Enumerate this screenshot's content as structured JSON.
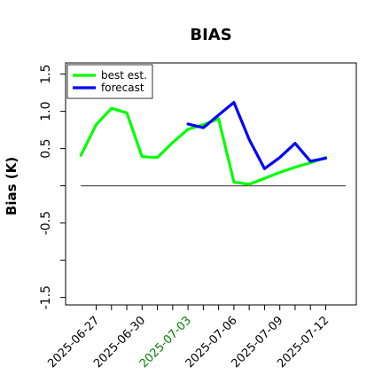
{
  "chart_data": {
    "type": "line",
    "title": "BIAS",
    "xlabel": "",
    "ylabel": "Bias (K)",
    "ylim": [
      -1.6,
      1.65
    ],
    "xlim": [
      "2025-06-25",
      "2025-07-14"
    ],
    "yticks": [
      -1.5,
      -1.0,
      -0.5,
      0.0,
      0.5,
      1.0,
      1.5
    ],
    "ytick_labels": [
      "-1.5",
      "",
      "-0.5",
      "",
      "0.5",
      "1.0",
      "1.5"
    ],
    "xticks": [
      "2025-06-27",
      "2025-06-28",
      "2025-06-29",
      "2025-06-30",
      "2025-07-01",
      "2025-07-02",
      "2025-07-03",
      "2025-07-04",
      "2025-07-05",
      "2025-07-06",
      "2025-07-07",
      "2025-07-08",
      "2025-07-09",
      "2025-07-10",
      "2025-07-11",
      "2025-07-12"
    ],
    "xtick_labels": [
      {
        "date": "2025-06-27",
        "text": "2025-06-27",
        "color": "#000000"
      },
      {
        "date": "2025-06-30",
        "text": "2025-06-30",
        "color": "#000000"
      },
      {
        "date": "2025-07-03",
        "text": "2025-07-03",
        "color": "#008000"
      },
      {
        "date": "2025-07-06",
        "text": "2025-07-06",
        "color": "#000000"
      },
      {
        "date": "2025-07-09",
        "text": "2025-07-09",
        "color": "#000000"
      },
      {
        "date": "2025-07-12",
        "text": "2025-07-12",
        "color": "#000000"
      }
    ],
    "zero_line": 0.0,
    "grid": false,
    "legend_position": "top-left",
    "series": [
      {
        "name": "best est.",
        "color": "#00ff00",
        "x": [
          "2025-06-26",
          "2025-06-27",
          "2025-06-28",
          "2025-06-29",
          "2025-06-30",
          "2025-07-01",
          "2025-07-02",
          "2025-07-03",
          "2025-07-04",
          "2025-07-05",
          "2025-07-06",
          "2025-07-07",
          "2025-07-08",
          "2025-07-09",
          "2025-07-10",
          "2025-07-11",
          "2025-07-12"
        ],
        "values": [
          0.41,
          0.82,
          1.04,
          0.98,
          0.39,
          0.38,
          0.58,
          0.76,
          0.82,
          0.9,
          0.05,
          0.02,
          0.1,
          0.18,
          0.25,
          0.31,
          0.38
        ]
      },
      {
        "name": "forecast",
        "color": "#0000ff",
        "x": [
          "2025-07-03",
          "2025-07-04",
          "2025-07-05",
          "2025-07-06",
          "2025-07-07",
          "2025-07-08",
          "2025-07-09",
          "2025-07-10",
          "2025-07-11",
          "2025-07-12"
        ],
        "values": [
          0.83,
          0.78,
          0.95,
          1.12,
          0.62,
          0.23,
          0.38,
          0.57,
          0.33,
          0.37
        ]
      }
    ]
  }
}
